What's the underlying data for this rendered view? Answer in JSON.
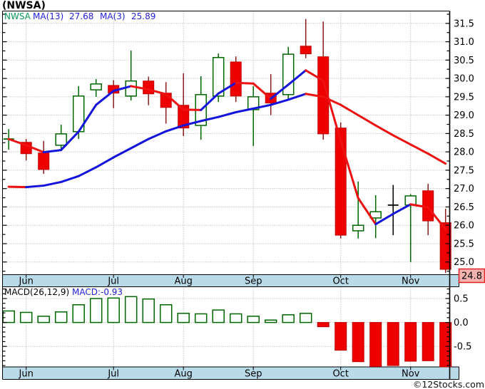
{
  "title": "(NWSA)",
  "watermark": "©12Stocks.com",
  "colors": {
    "up": "#006600",
    "down_fill": "#ee0000",
    "down_stroke": "#c00000",
    "down_wick": "#8b1a1a",
    "doji_black": "#000000",
    "ma_up": "#1414dd",
    "ma_down": "#ee1111",
    "grid": "#a9a9a9",
    "band": "#b9dae8",
    "axis": "#000000",
    "last_price_bg": "#f5b2ae",
    "last_price_border": "#dd2222",
    "legend_symbol": "#089858",
    "legend_ma": "#2222dd",
    "macd_value": "#2222dd"
  },
  "price_panel": {
    "legend": {
      "symbol": "NWSA",
      "ma13_label": "MA(13)",
      "ma13_value": "27.68",
      "ma3_label": "MA(3)",
      "ma3_value": "25.89"
    },
    "last_price": "24.8",
    "y_labels": [
      "31.5",
      "31.0",
      "30.5",
      "30.0",
      "29.5",
      "29.0",
      "28.5",
      "28.0",
      "27.5",
      "27.0",
      "26.5",
      "26.0",
      "25.5",
      "25.0"
    ]
  },
  "macd_panel": {
    "legend_name": "MACD(26,12,9)",
    "legend_value": "MACD:-0.93",
    "y_labels": [
      "0.5",
      "0.0",
      "-0.5"
    ]
  },
  "months": [
    "Jun",
    "Jul",
    "Aug",
    "Sep",
    "Oct",
    "Nov"
  ],
  "chart_data": [
    {
      "type": "candlestick",
      "title": "(NWSA)",
      "interval": "weekly",
      "ylim": [
        24.65,
        31.84
      ],
      "y_tick_step": 0.5,
      "x_tick_labels": [
        "Jun",
        "Jul",
        "Aug",
        "Sep",
        "Oct",
        "Nov"
      ],
      "month_tick_indices": [
        1,
        6,
        10,
        14,
        19,
        23
      ],
      "last_price": 24.8,
      "candles": [
        {
          "o": 28.35,
          "h": 28.62,
          "l": 28.06,
          "c": 28.35,
          "k": "dg"
        },
        {
          "o": 28.26,
          "h": 28.35,
          "l": 27.77,
          "c": 27.95,
          "k": "r"
        },
        {
          "o": 27.97,
          "h": 28.3,
          "l": 27.4,
          "c": 27.52,
          "k": "r"
        },
        {
          "o": 28.18,
          "h": 28.74,
          "l": 28.06,
          "c": 28.49,
          "k": "g"
        },
        {
          "o": 28.55,
          "h": 29.79,
          "l": 28.35,
          "c": 29.52,
          "k": "g"
        },
        {
          "o": 29.69,
          "h": 29.98,
          "l": 29.5,
          "c": 29.85,
          "k": "g"
        },
        {
          "o": 29.81,
          "h": 29.95,
          "l": 29.19,
          "c": 29.6,
          "k": "r"
        },
        {
          "o": 29.52,
          "h": 30.76,
          "l": 29.4,
          "c": 29.93,
          "k": "g"
        },
        {
          "o": 29.93,
          "h": 30.05,
          "l": 29.27,
          "c": 29.58,
          "k": "r"
        },
        {
          "o": 29.6,
          "h": 29.9,
          "l": 28.77,
          "c": 29.21,
          "k": "r"
        },
        {
          "o": 29.27,
          "h": 30.14,
          "l": 28.43,
          "c": 28.65,
          "k": "r"
        },
        {
          "o": 28.72,
          "h": 30.06,
          "l": 28.33,
          "c": 29.56,
          "k": "g"
        },
        {
          "o": 29.52,
          "h": 30.68,
          "l": 29.36,
          "c": 30.57,
          "k": "g"
        },
        {
          "o": 30.45,
          "h": 30.6,
          "l": 29.36,
          "c": 29.52,
          "k": "r"
        },
        {
          "o": 29.15,
          "h": 29.79,
          "l": 28.16,
          "c": 29.5,
          "k": "g"
        },
        {
          "o": 29.6,
          "h": 30.12,
          "l": 29.0,
          "c": 29.33,
          "k": "r"
        },
        {
          "o": 29.56,
          "h": 30.86,
          "l": 29.42,
          "c": 30.66,
          "k": "g"
        },
        {
          "o": 30.88,
          "h": 31.62,
          "l": 30.55,
          "c": 30.67,
          "k": "r"
        },
        {
          "o": 30.59,
          "h": 31.55,
          "l": 28.33,
          "c": 28.49,
          "k": "r"
        },
        {
          "o": 28.65,
          "h": 28.8,
          "l": 25.64,
          "c": 25.73,
          "k": "r"
        },
        {
          "o": 25.85,
          "h": 27.19,
          "l": 25.64,
          "c": 26.0,
          "k": "g"
        },
        {
          "o": 26.2,
          "h": 26.82,
          "l": 25.65,
          "c": 26.37,
          "k": "g"
        },
        {
          "o": 26.55,
          "h": 27.1,
          "l": 25.73,
          "c": 26.55,
          "k": "db"
        },
        {
          "o": 26.55,
          "h": 26.85,
          "l": 25.0,
          "c": 26.8,
          "k": "g"
        },
        {
          "o": 26.94,
          "h": 27.13,
          "l": 25.73,
          "c": 26.12,
          "k": "r"
        },
        {
          "o": 26.07,
          "h": 26.45,
          "l": 24.7,
          "c": 24.8,
          "k": "r"
        }
      ],
      "series": [
        {
          "name": "MA(3)",
          "period": 3,
          "last": 25.89,
          "values": [
            28.35,
            28.18,
            27.99,
            28.05,
            28.55,
            29.28,
            29.66,
            29.79,
            29.7,
            29.57,
            29.15,
            29.14,
            29.59,
            29.88,
            29.86,
            29.45,
            29.83,
            30.22,
            29.94,
            28.3,
            26.74,
            26.03,
            26.31,
            26.57,
            26.49,
            25.89
          ]
        },
        {
          "name": "MA(13)",
          "period": 13,
          "last": 27.68,
          "values": [
            27.05,
            27.04,
            27.08,
            27.18,
            27.34,
            27.58,
            27.85,
            28.1,
            28.35,
            28.56,
            28.72,
            28.84,
            28.95,
            29.08,
            29.18,
            29.28,
            29.42,
            29.58,
            29.5,
            29.28,
            29.0,
            28.72,
            28.45,
            28.2,
            27.95,
            27.68
          ]
        }
      ]
    },
    {
      "type": "bar",
      "name": "MACD(26,12,9)",
      "last": -0.93,
      "ylim": [
        -0.93,
        0.74
      ],
      "y_tick_labels": [
        0.5,
        0.0,
        -0.5
      ],
      "values": [
        0.24,
        0.21,
        0.13,
        0.22,
        0.37,
        0.5,
        0.51,
        0.54,
        0.49,
        0.37,
        0.19,
        0.18,
        0.26,
        0.18,
        0.13,
        0.05,
        0.16,
        0.19,
        -0.09,
        -0.58,
        -0.82,
        -0.92,
        -0.9,
        -0.81,
        -0.8,
        -0.93
      ]
    }
  ]
}
